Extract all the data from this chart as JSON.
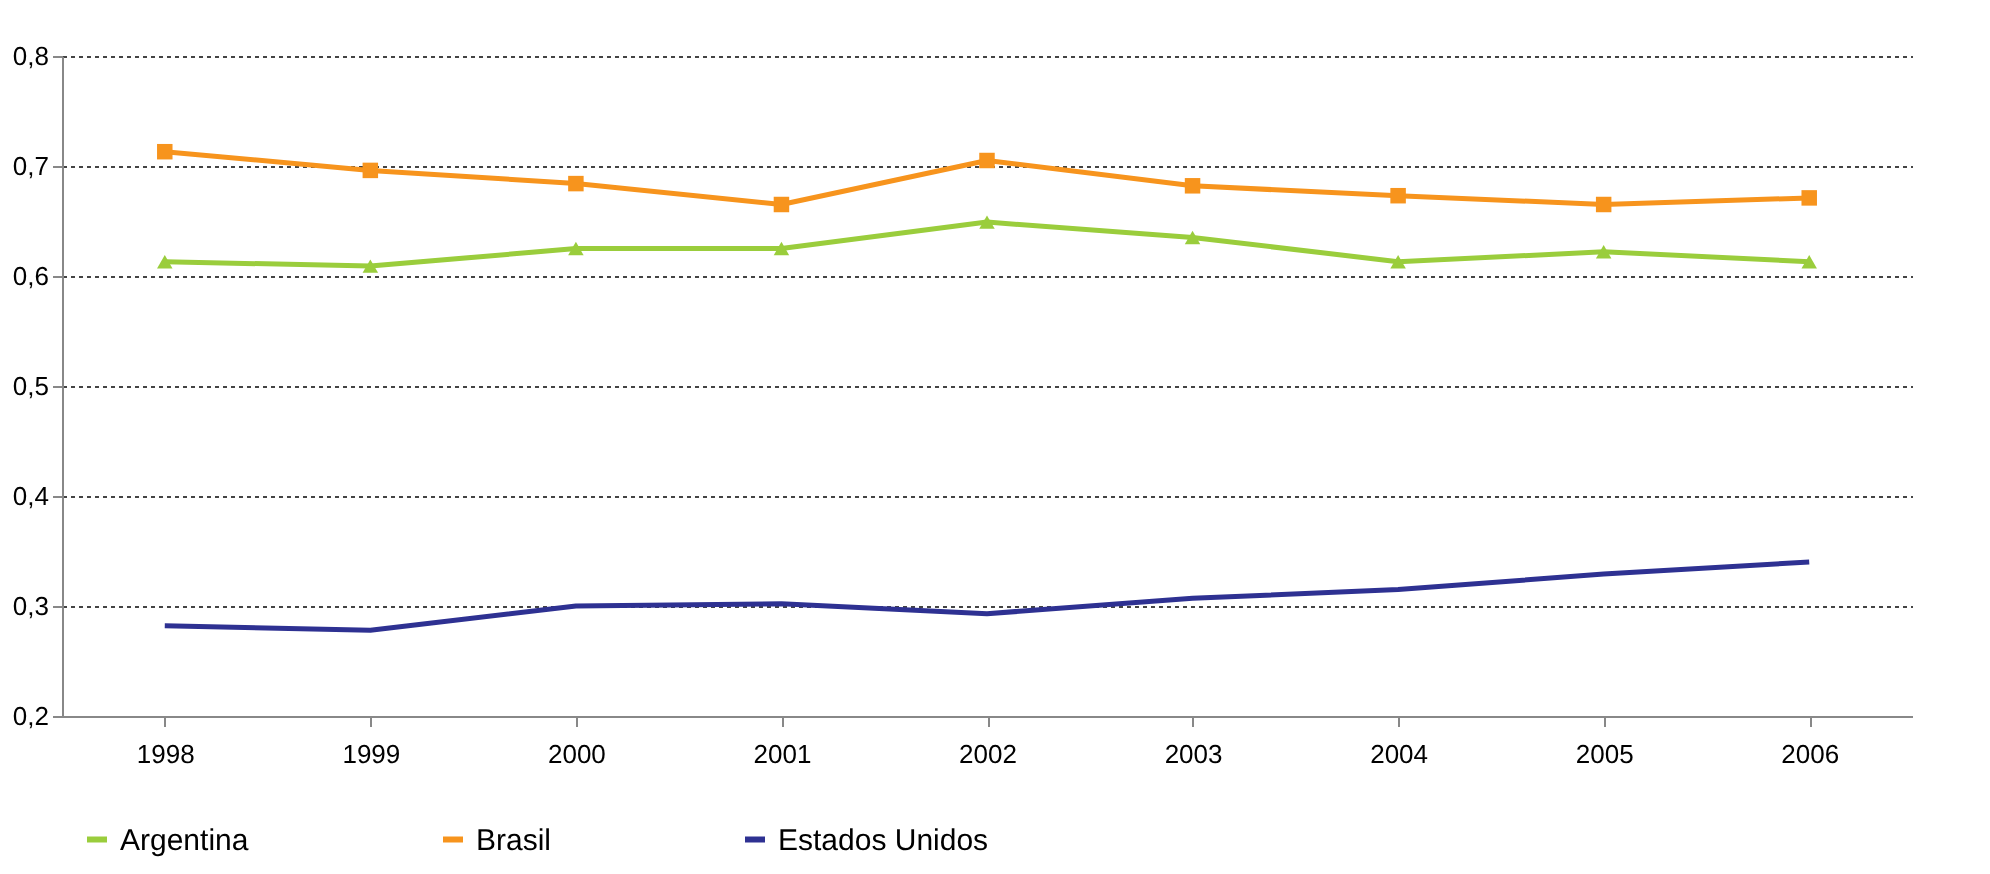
{
  "chart_data": {
    "type": "line",
    "categories": [
      "1998",
      "1999",
      "2000",
      "2001",
      "2002",
      "2003",
      "2004",
      "2005",
      "2006"
    ],
    "series": [
      {
        "name": "Argentina",
        "color": "#9acd3c",
        "marker": "triangle",
        "values": [
          0.613,
          0.609,
          0.625,
          0.625,
          0.649,
          0.635,
          0.613,
          0.622,
          0.613
        ]
      },
      {
        "name": "Brasil",
        "color": "#f7941d",
        "marker": "square",
        "values": [
          0.713,
          0.696,
          0.684,
          0.665,
          0.705,
          0.682,
          0.673,
          0.665,
          0.671
        ]
      },
      {
        "name": "Estados Unidos",
        "color": "#2e3192",
        "marker": "none",
        "values": [
          0.282,
          0.278,
          0.3,
          0.302,
          0.293,
          0.307,
          0.315,
          0.329,
          0.34
        ]
      }
    ],
    "ylim": [
      0.2,
      0.8
    ],
    "yticks": [
      {
        "value": 0.2,
        "label": "0,2"
      },
      {
        "value": 0.3,
        "label": "0,3"
      },
      {
        "value": 0.4,
        "label": "0,4"
      },
      {
        "value": 0.5,
        "label": "0,5"
      },
      {
        "value": 0.6,
        "label": "0,6"
      },
      {
        "value": 0.7,
        "label": "0,7"
      },
      {
        "value": 0.8,
        "label": "0,8"
      }
    ],
    "grid": "y",
    "legend": "bottom",
    "line_style": "solid"
  }
}
